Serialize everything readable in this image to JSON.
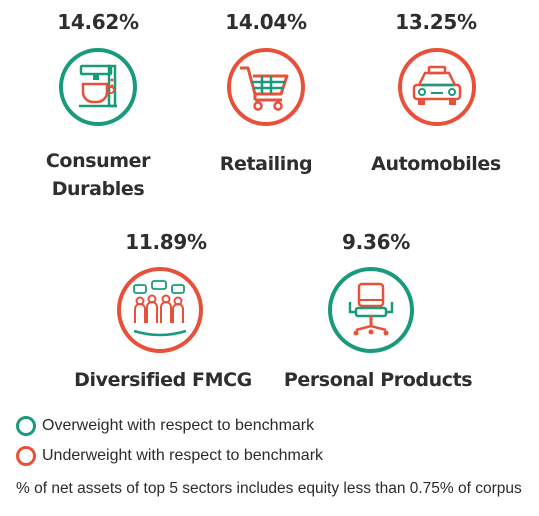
{
  "chart_data": {
    "type": "infographic",
    "unit": "% of net assets",
    "sectors": [
      {
        "name": "Consumer Durables",
        "value": 14.62,
        "value_label": "14.62%",
        "weighting": "overweight",
        "icon": "coffee-machine-icon"
      },
      {
        "name": "Retailing",
        "value": 14.04,
        "value_label": "14.04%",
        "weighting": "underweight",
        "icon": "shopping-cart-icon"
      },
      {
        "name": "Automobiles",
        "value": 13.25,
        "value_label": "13.25%",
        "weighting": "underweight",
        "icon": "car-icon"
      },
      {
        "name": "Diversified FMCG",
        "value": 11.89,
        "value_label": "11.89%",
        "weighting": "underweight",
        "icon": "consumers-icon"
      },
      {
        "name": "Personal Products",
        "value": 9.36,
        "value_label": "9.36%",
        "weighting": "overweight",
        "icon": "office-chair-icon"
      }
    ],
    "legend": [
      {
        "label": "Overweight with respect to benchmark",
        "color": "#1a9a7c"
      },
      {
        "label": "Underweight with respect to benchmark",
        "color": "#e8503a"
      }
    ],
    "footnote": "% of net assets of top 5 sectors includes equity less than 0.75% of corpus"
  },
  "colors": {
    "overweight": "#1a9a7c",
    "underweight": "#e8503a",
    "text": "#2e2e2e"
  },
  "text": {
    "s0_pct": "14.62%",
    "s0_name1": "Consumer",
    "s0_name2": "Durables",
    "s1_pct": "14.04%",
    "s1_name1": "Retailing",
    "s2_pct": "13.25%",
    "s2_name1": "Automobiles",
    "s3_pct": "11.89%",
    "s3_name1": "Diversified FMCG",
    "s4_pct": "9.36%",
    "s4_name1": "Personal Products",
    "legend_over": "Overweight with respect to benchmark",
    "legend_under": "Underweight with respect to benchmark",
    "footnote": "% of net assets of top 5 sectors includes equity less than 0.75% of corpus"
  }
}
